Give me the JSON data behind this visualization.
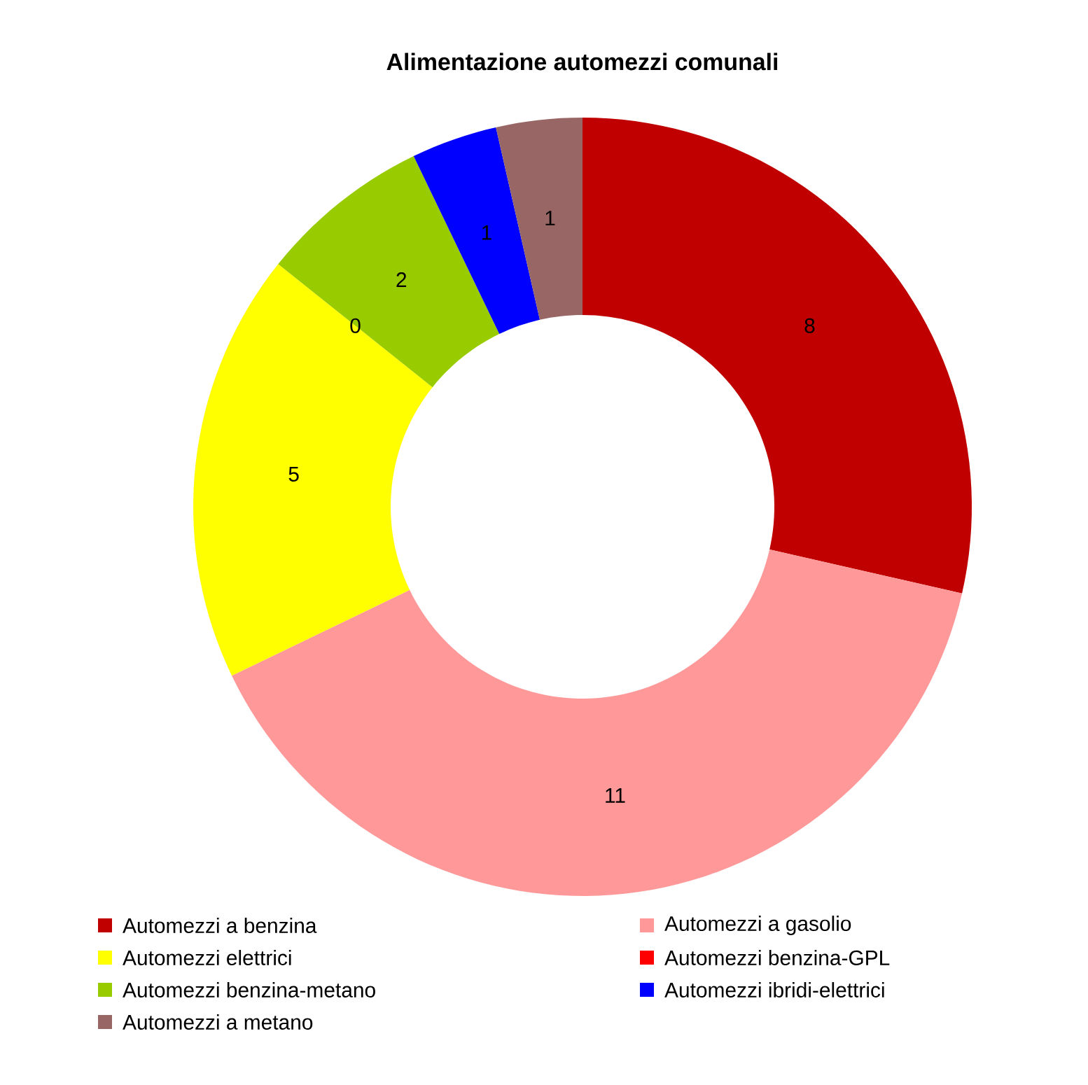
{
  "chart_data": {
    "type": "donut",
    "title": "Alimentazione automezzi comunali",
    "categories": [
      "Automezzi a benzina",
      "Automezzi a gasolio",
      "Automezzi elettrici",
      "Automezzi benzina-GPL",
      "Automezzi benzina-metano",
      "Automezzi ibridi-elettrici",
      "Automezzi a metano"
    ],
    "values": [
      8,
      11,
      5,
      0,
      2,
      1,
      1
    ],
    "colors": [
      "#c00000",
      "#ff9999",
      "#ffff00",
      "#ff0000",
      "#99cc00",
      "#0000ff",
      "#996666"
    ],
    "value_labels": [
      "8",
      "11",
      "5",
      "0",
      "2",
      "1",
      "1"
    ],
    "legend": "bottom"
  }
}
